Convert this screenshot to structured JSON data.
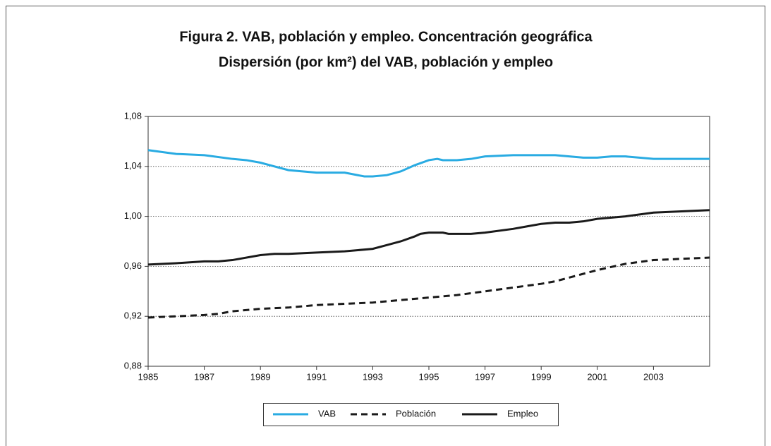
{
  "chart_data": {
    "type": "line",
    "title": "Figura 2. VAB, población y empleo. Concentración geográfica",
    "subtitle": "Dispersión (por km²) del VAB, población y empleo",
    "xlim": [
      1985,
      2005
    ],
    "xticks": [
      1985,
      1987,
      1989,
      1991,
      1993,
      1995,
      1997,
      1999,
      2001,
      2003
    ],
    "ylim": [
      0.88,
      1.08
    ],
    "yticks": [
      {
        "value": 0.88,
        "label": "0,88"
      },
      {
        "value": 0.92,
        "label": "0,92"
      },
      {
        "value": 0.96,
        "label": "0,96"
      },
      {
        "value": 1.0,
        "label": "1,00"
      },
      {
        "value": 1.04,
        "label": "1,04"
      },
      {
        "value": 1.08,
        "label": "1,08"
      }
    ],
    "grid": true,
    "series": [
      {
        "name": "VAB",
        "color": "#29abe2",
        "line_style": "solid",
        "x": [
          1985,
          1986,
          1987,
          1988,
          1988.5,
          1989,
          1990,
          1991,
          1992,
          1992.7,
          1993,
          1993.5,
          1994,
          1994.5,
          1995,
          1995.3,
          1995.5,
          1996,
          1996.5,
          1997,
          1998,
          1999,
          1999.5,
          2000,
          2000.5,
          2001,
          2001.5,
          2002,
          2003,
          2004,
          2005
        ],
        "values": [
          1.053,
          1.05,
          1.049,
          1.046,
          1.045,
          1.043,
          1.037,
          1.035,
          1.035,
          1.032,
          1.032,
          1.033,
          1.036,
          1.041,
          1.045,
          1.046,
          1.045,
          1.045,
          1.046,
          1.048,
          1.049,
          1.049,
          1.049,
          1.048,
          1.047,
          1.047,
          1.048,
          1.048,
          1.046,
          1.046,
          1.046
        ]
      },
      {
        "name": "Población",
        "color": "#1a1a1a",
        "line_style": "dashed",
        "x": [
          1985,
          1986,
          1987,
          1987.5,
          1988,
          1989,
          1990,
          1991,
          1992,
          1993,
          1994,
          1995,
          1996,
          1997,
          1998,
          1999,
          1999.5,
          2000,
          2001,
          2002,
          2003,
          2004,
          2005
        ],
        "values": [
          0.919,
          0.92,
          0.921,
          0.922,
          0.924,
          0.926,
          0.927,
          0.929,
          0.93,
          0.931,
          0.933,
          0.935,
          0.937,
          0.94,
          0.943,
          0.946,
          0.948,
          0.951,
          0.957,
          0.962,
          0.965,
          0.966,
          0.967
        ]
      },
      {
        "name": "Empleo",
        "color": "#1a1a1a",
        "line_style": "solid",
        "x": [
          1985,
          1986,
          1987,
          1987.5,
          1988,
          1989,
          1989.5,
          1990,
          1991,
          1992,
          1993,
          1993.5,
          1994,
          1994.5,
          1994.7,
          1995,
          1995.5,
          1995.7,
          1996,
          1996.5,
          1997,
          1998,
          1998.5,
          1999,
          1999.5,
          2000,
          2000.5,
          2001,
          2002,
          2003,
          2004,
          2005
        ],
        "values": [
          0.9614,
          0.9625,
          0.964,
          0.964,
          0.965,
          0.969,
          0.97,
          0.97,
          0.971,
          0.972,
          0.974,
          0.977,
          0.98,
          0.984,
          0.986,
          0.987,
          0.987,
          0.986,
          0.986,
          0.986,
          0.987,
          0.99,
          0.992,
          0.994,
          0.995,
          0.995,
          0.996,
          0.998,
          1.0,
          1.003,
          1.004,
          1.005
        ]
      }
    ]
  }
}
